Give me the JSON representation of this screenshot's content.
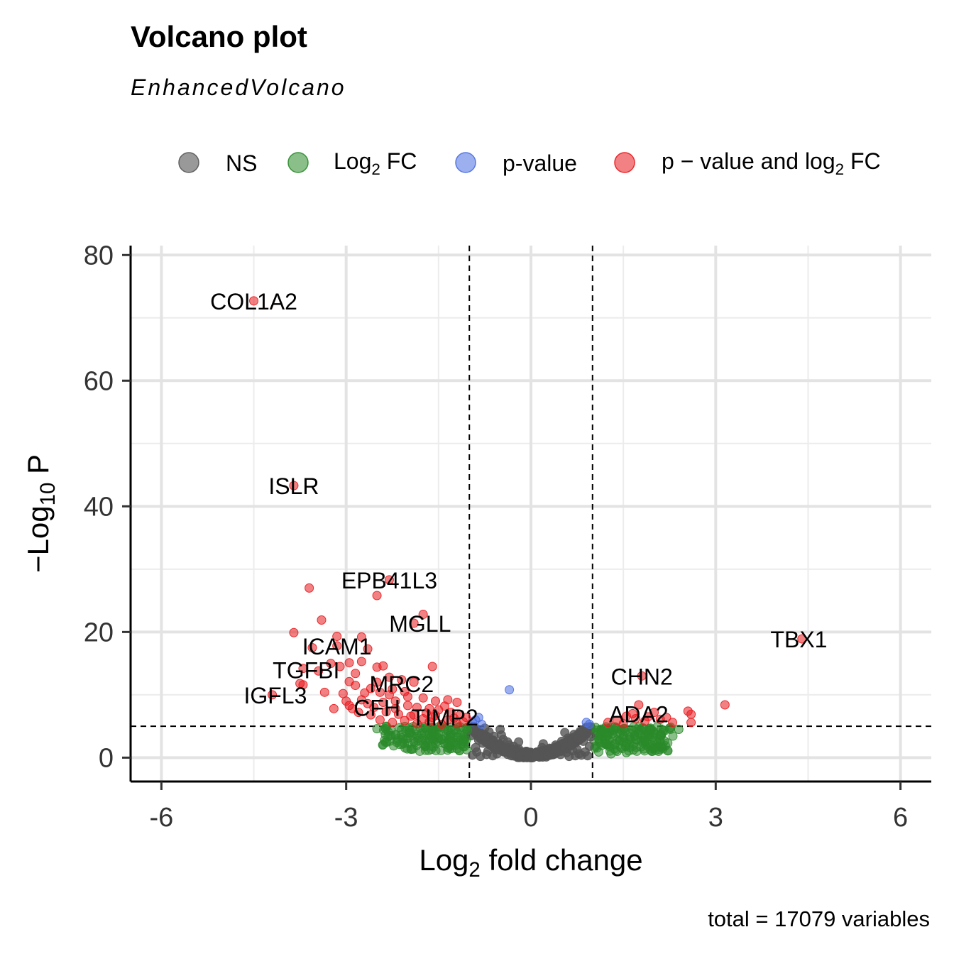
{
  "chart_data": {
    "type": "scatter",
    "title": "Volcano plot",
    "subtitle": "EnhancedVolcano",
    "caption": "total = 17079 variables",
    "xlabel": {
      "pre": "Log",
      "sub": "2",
      "post": " fold change"
    },
    "ylabel": {
      "pre": "−Log",
      "sub": "10",
      "post": " P"
    },
    "xlim": [
      -6.5,
      6.5
    ],
    "ylim": [
      -3.8,
      81.5
    ],
    "xticks": [
      -6,
      -3,
      0,
      3,
      6
    ],
    "xtick_labels": [
      "-6",
      "-3",
      "0",
      "3",
      "6"
    ],
    "yticks": [
      0,
      20,
      40,
      60,
      80
    ],
    "ytick_labels": [
      "0",
      "20",
      "40",
      "60",
      "80"
    ],
    "grid": true,
    "legend_position": "top",
    "cutoffs": {
      "fc": 1,
      "p_log10": 5
    },
    "legend": [
      {
        "key": "ns",
        "label": "NS"
      },
      {
        "key": "fc",
        "label": "Log",
        "sub": "2",
        "post": " FC"
      },
      {
        "key": "p",
        "label": "p-value"
      },
      {
        "key": "pfc",
        "label": "p − value and log",
        "sub": "2",
        "post": " FC"
      }
    ],
    "colors": {
      "ns": "#555555",
      "fc": "#2a8a2a",
      "p": "#4a6ee0",
      "pfc": "#e8191e"
    },
    "labels": [
      {
        "text": "COL1A2",
        "x": -4.5,
        "y": 72.7
      },
      {
        "text": "ISLR",
        "x": -3.85,
        "y": 43.3
      },
      {
        "text": "EPB41L3",
        "x": -2.3,
        "y": 28.3
      },
      {
        "text": "MGLL",
        "x": -1.8,
        "y": 21.4
      },
      {
        "text": "ICAM1",
        "x": -3.15,
        "y": 17.8
      },
      {
        "text": "TGFBI",
        "x": -3.65,
        "y": 14.0
      },
      {
        "text": "MRC2",
        "x": -2.1,
        "y": 11.8
      },
      {
        "text": "IGFL3",
        "x": -4.15,
        "y": 10.0
      },
      {
        "text": "CFH",
        "x": -2.5,
        "y": 8.0
      },
      {
        "text": "TIMP2",
        "x": -1.4,
        "y": 6.5
      },
      {
        "text": "TBX1",
        "x": 4.35,
        "y": 18.9
      },
      {
        "text": "CHN2",
        "x": 1.8,
        "y": 13.0
      },
      {
        "text": "ADA2",
        "x": 1.75,
        "y": 7.0
      }
    ],
    "series": [
      {
        "key": "pfc",
        "points": [
          [
            -4.5,
            72.7
          ],
          [
            -3.85,
            43.3
          ],
          [
            -2.3,
            28.3
          ],
          [
            -2.5,
            25.8
          ],
          [
            -3.6,
            27.0
          ],
          [
            -1.75,
            22.8
          ],
          [
            -1.9,
            21.4
          ],
          [
            -3.4,
            21.9
          ],
          [
            -3.85,
            19.9
          ],
          [
            -3.15,
            19.3
          ],
          [
            -2.75,
            19.2
          ],
          [
            -3.55,
            17.5
          ],
          [
            -2.65,
            17.3
          ],
          [
            -3.15,
            17.8
          ],
          [
            -3.7,
            14.2
          ],
          [
            -3.45,
            13.8
          ],
          [
            -3.1,
            14.5
          ],
          [
            -2.95,
            15.1
          ],
          [
            -2.75,
            15.3
          ],
          [
            -2.5,
            14.4
          ],
          [
            -2.4,
            14.6
          ],
          [
            -1.6,
            14.5
          ],
          [
            -2.1,
            12.4
          ],
          [
            -2.3,
            12.8
          ],
          [
            -1.9,
            12.0
          ],
          [
            -3.75,
            11.8
          ],
          [
            -3.7,
            11.6
          ],
          [
            -4.2,
            10.0
          ],
          [
            -3.35,
            10.4
          ],
          [
            -3.05,
            10.2
          ],
          [
            -2.95,
            12.1
          ],
          [
            -2.85,
            11.5
          ],
          [
            -2.6,
            11.0
          ],
          [
            -2.45,
            10.4
          ],
          [
            -2.25,
            10.9
          ],
          [
            -2.05,
            10.5
          ],
          [
            -1.75,
            9.5
          ],
          [
            -1.55,
            9.0
          ],
          [
            -1.35,
            9.2
          ],
          [
            -1.2,
            8.8
          ],
          [
            -3.2,
            7.8
          ],
          [
            -2.95,
            8.3
          ],
          [
            -2.75,
            9.2
          ],
          [
            -2.65,
            8.6
          ],
          [
            -2.55,
            8.0
          ],
          [
            -2.4,
            8.8
          ],
          [
            -2.2,
            9.0
          ],
          [
            -2.0,
            8.3
          ],
          [
            -1.85,
            8.0
          ],
          [
            -1.65,
            7.8
          ],
          [
            -1.5,
            7.6
          ],
          [
            -1.4,
            8.2
          ],
          [
            -1.3,
            7.2
          ],
          [
            -1.15,
            6.8
          ],
          [
            -1.05,
            6.4
          ],
          [
            -2.8,
            7.2
          ],
          [
            -2.6,
            6.8
          ],
          [
            -2.35,
            7.3
          ],
          [
            -2.15,
            6.9
          ],
          [
            -1.95,
            6.6
          ],
          [
            -1.75,
            6.2
          ],
          [
            -1.55,
            6.7
          ],
          [
            -1.35,
            6.0
          ],
          [
            -1.25,
            6.3
          ],
          [
            -1.1,
            5.7
          ],
          [
            -2.45,
            6.0
          ],
          [
            -2.25,
            5.6
          ],
          [
            -2.05,
            5.9
          ],
          [
            -1.85,
            5.4
          ],
          [
            -1.65,
            5.7
          ],
          [
            -1.45,
            5.3
          ],
          [
            -1.2,
            5.4
          ],
          [
            -3.0,
            9.0
          ],
          [
            -2.9,
            7.8
          ],
          [
            -2.3,
            10.0
          ],
          [
            -2.0,
            9.7
          ],
          [
            -1.9,
            6.8
          ],
          [
            -2.7,
            10.3
          ],
          [
            -2.5,
            12.0
          ],
          [
            -3.25,
            15.0
          ],
          [
            -2.85,
            13.4
          ],
          [
            -2.2,
            7.8
          ],
          [
            -1.7,
            7.1
          ],
          [
            -1.6,
            6.4
          ],
          [
            4.4,
            18.9
          ],
          [
            1.8,
            13.0
          ],
          [
            1.75,
            8.4
          ],
          [
            3.15,
            8.4
          ],
          [
            2.55,
            7.4
          ],
          [
            2.6,
            6.9
          ],
          [
            2.6,
            5.6
          ],
          [
            2.0,
            7.2
          ],
          [
            1.9,
            6.5
          ],
          [
            2.1,
            6.1
          ],
          [
            2.3,
            5.6
          ],
          [
            1.85,
            5.8
          ],
          [
            1.55,
            6.6
          ],
          [
            1.65,
            7.0
          ],
          [
            1.25,
            5.6
          ],
          [
            1.4,
            5.9
          ],
          [
            2.2,
            6.4
          ],
          [
            1.5,
            5.4
          ],
          [
            1.7,
            6.2
          ]
        ]
      },
      {
        "key": "p",
        "points": [
          [
            -0.35,
            10.8
          ],
          [
            -0.85,
            6.4
          ],
          [
            -0.9,
            6.0
          ],
          [
            -0.95,
            5.7
          ],
          [
            -0.8,
            5.3
          ],
          [
            0.95,
            5.3
          ],
          [
            0.9,
            5.6
          ]
        ]
      },
      {
        "key": "fc",
        "points": [
          [
            -2.35,
            5.0
          ],
          [
            -2.1,
            4.5
          ],
          [
            -1.95,
            4.0
          ],
          [
            -1.8,
            4.8
          ],
          [
            -1.7,
            3.5
          ],
          [
            -1.6,
            4.2
          ],
          [
            -1.5,
            3.8
          ],
          [
            -1.45,
            2.9
          ],
          [
            -1.4,
            4.6
          ],
          [
            -1.3,
            3.2
          ],
          [
            -1.25,
            2.4
          ],
          [
            -1.2,
            4.0
          ],
          [
            -1.15,
            3.6
          ],
          [
            -1.1,
            1.8
          ],
          [
            -1.05,
            2.8
          ],
          [
            -1.03,
            4.4
          ],
          [
            -2.0,
            3.1
          ],
          [
            -1.85,
            3.4
          ],
          [
            -1.65,
            2.8
          ],
          [
            -1.55,
            2.2
          ],
          [
            -1.35,
            1.6
          ],
          [
            -2.2,
            3.6
          ],
          [
            -2.5,
            4.6
          ],
          [
            -1.75,
            4.6
          ],
          [
            -1.5,
            4.9
          ],
          [
            -1.3,
            4.8
          ],
          [
            -1.15,
            4.9
          ],
          [
            -1.05,
            4.7
          ],
          [
            -1.9,
            2.6
          ],
          [
            -1.6,
            3.0
          ],
          [
            -1.4,
            2.2
          ],
          [
            -1.2,
            1.4
          ],
          [
            -1.1,
            2.2
          ],
          [
            1.05,
            1.8
          ],
          [
            1.1,
            3.0
          ],
          [
            1.15,
            4.2
          ],
          [
            1.2,
            2.2
          ],
          [
            1.25,
            3.5
          ],
          [
            1.3,
            4.8
          ],
          [
            1.35,
            1.4
          ],
          [
            1.4,
            2.8
          ],
          [
            1.45,
            3.9
          ],
          [
            1.5,
            4.6
          ],
          [
            1.55,
            2.3
          ],
          [
            1.6,
            3.3
          ],
          [
            1.65,
            4.4
          ],
          [
            1.7,
            2.9
          ],
          [
            1.75,
            3.9
          ],
          [
            1.8,
            4.7
          ],
          [
            1.9,
            3.6
          ],
          [
            1.95,
            4.5
          ],
          [
            2.0,
            4.0
          ],
          [
            2.05,
            4.9
          ],
          [
            2.15,
            4.3
          ],
          [
            2.25,
            4.7
          ],
          [
            2.4,
            4.5
          ],
          [
            1.4,
            1.0
          ],
          [
            1.55,
            0.8
          ],
          [
            1.1,
            0.9
          ],
          [
            1.3,
            0.6
          ],
          [
            1.85,
            2.7
          ],
          [
            1.2,
            4.6
          ],
          [
            1.05,
            4.8
          ],
          [
            1.5,
            3.5
          ],
          [
            1.35,
            4.4
          ],
          [
            2.1,
            3.6
          ]
        ]
      },
      {
        "key": "ns",
        "points": [
          [
            -0.95,
            0.4
          ],
          [
            -0.9,
            1.6
          ],
          [
            -0.85,
            2.8
          ],
          [
            -0.8,
            3.8
          ],
          [
            -0.75,
            4.7
          ],
          [
            -0.7,
            1.0
          ],
          [
            -0.65,
            2.2
          ],
          [
            -0.6,
            3.4
          ],
          [
            -0.55,
            0.6
          ],
          [
            -0.5,
            1.8
          ],
          [
            -0.45,
            2.9
          ],
          [
            -0.4,
            0.9
          ],
          [
            -0.35,
            2.0
          ],
          [
            -0.3,
            1.2
          ],
          [
            -0.25,
            0.5
          ],
          [
            -0.2,
            1.4
          ],
          [
            -0.15,
            0.7
          ],
          [
            -0.1,
            0.3
          ],
          [
            -0.05,
            0.6
          ],
          [
            0.0,
            0.1
          ],
          [
            0.05,
            0.4
          ],
          [
            0.1,
            0.8
          ],
          [
            0.15,
            0.3
          ],
          [
            0.2,
            1.0
          ],
          [
            0.25,
            0.6
          ],
          [
            0.3,
            1.5
          ],
          [
            0.35,
            0.9
          ],
          [
            0.4,
            2.0
          ],
          [
            0.45,
            1.2
          ],
          [
            0.5,
            2.6
          ],
          [
            0.55,
            1.6
          ],
          [
            0.6,
            3.1
          ],
          [
            0.65,
            2.1
          ],
          [
            0.7,
            3.7
          ],
          [
            0.75,
            1.3
          ],
          [
            0.8,
            4.2
          ],
          [
            0.85,
            2.6
          ],
          [
            0.9,
            4.7
          ],
          [
            0.95,
            1.8
          ],
          [
            0.97,
            3.3
          ],
          [
            -0.97,
            3.5
          ],
          [
            -0.92,
            4.4
          ],
          [
            -0.88,
            0.9
          ],
          [
            -0.78,
            2.3
          ],
          [
            -0.68,
            4.1
          ],
          [
            -0.58,
            1.3
          ],
          [
            -0.48,
            3.6
          ],
          [
            -0.38,
            2.5
          ],
          [
            -0.28,
            1.8
          ],
          [
            -0.18,
            0.4
          ],
          [
            -0.08,
            1.0
          ],
          [
            0.08,
            0.2
          ],
          [
            0.18,
            1.6
          ],
          [
            0.28,
            0.4
          ],
          [
            0.38,
            1.0
          ],
          [
            0.48,
            0.5
          ],
          [
            0.58,
            0.8
          ],
          [
            0.68,
            1.1
          ],
          [
            0.78,
            0.6
          ],
          [
            0.88,
            0.9
          ],
          [
            -0.62,
            0.3
          ],
          [
            -0.72,
            0.5
          ],
          [
            -0.82,
            0.2
          ],
          [
            -0.42,
            1.5
          ],
          [
            -0.32,
            0.3
          ],
          [
            0.62,
            0.2
          ],
          [
            0.72,
            0.3
          ],
          [
            0.82,
            0.4
          ],
          [
            0.92,
            0.3
          ],
          [
            -0.5,
            4.5
          ],
          [
            -0.75,
            3.2
          ],
          [
            0.75,
            3.0
          ],
          [
            0.55,
            4.0
          ],
          [
            0.85,
            3.9
          ],
          [
            -0.2,
            2.5
          ],
          [
            0.2,
            2.2
          ]
        ]
      }
    ]
  }
}
